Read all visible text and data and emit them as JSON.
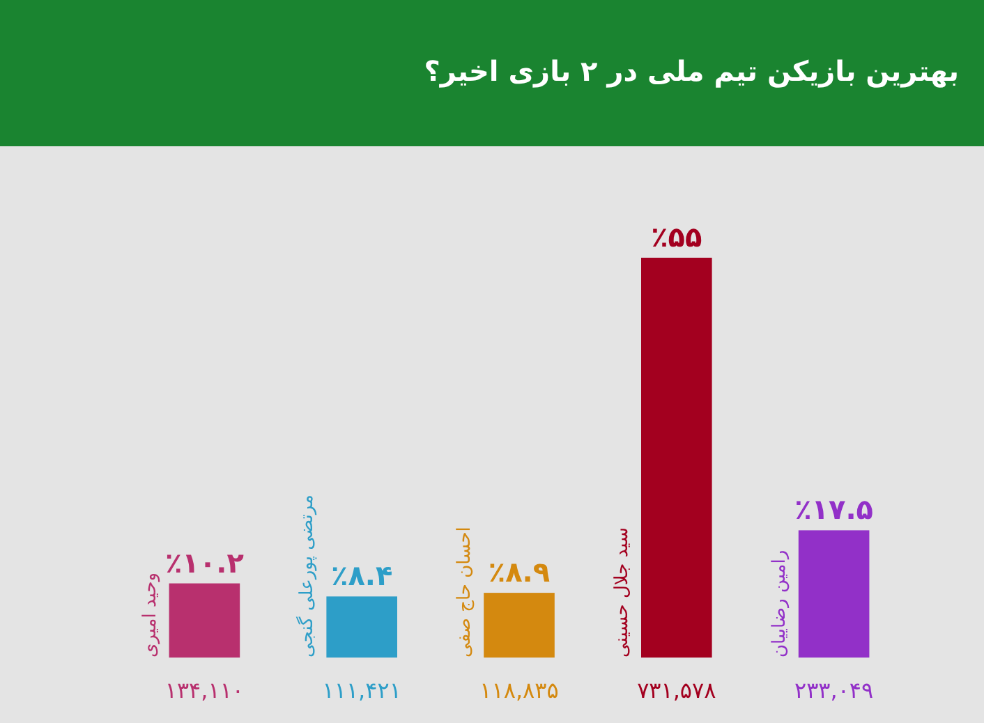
{
  "chart_data": {
    "type": "bar",
    "title": "بهترین بازیکن تیم ملی در ۲ بازی اخیر؟",
    "categories": [
      "وحید امیری",
      "مرتضی پورعلی گنجی",
      "احسان حاج صفی",
      "سید جلال حسینی",
      "رامین رضاییان"
    ],
    "values": [
      10.2,
      8.4,
      8.9,
      55,
      17.5
    ],
    "colors": [
      "#b8306e",
      "#2d9ec8",
      "#d4890f",
      "#a3001f",
      "#9230c8"
    ],
    "value_labels": [
      "٪۱۰.۲",
      "٪۸.۴",
      "٪۸.۹",
      "٪۵۵",
      "٪۱۷.۵"
    ],
    "annotations": [
      "۱۳۴,۱۱۰",
      "۱۱۱,۴۲۱",
      "۱۱۸,۸۳۵",
      "۷۳۱,۵۷۸",
      "۲۳۳,۰۴۹"
    ]
  }
}
